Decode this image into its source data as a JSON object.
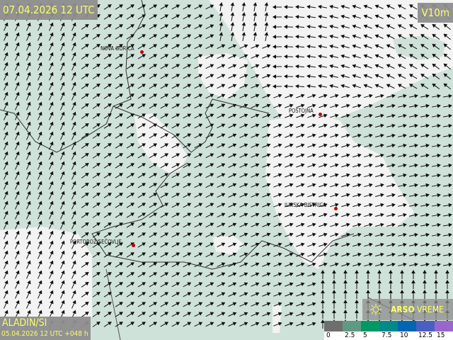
{
  "header": {
    "valid_time": "07.04.2026 12 UTC",
    "variable": "V10m"
  },
  "model": {
    "name": "ALADIN/SI",
    "run": "05.04.2026 12 UTC +048 h"
  },
  "brand": {
    "bold": "ARSO",
    "rest": " VREME",
    "icon": "sun-icon"
  },
  "cities": [
    {
      "name": "NOVA GORICA"
    },
    {
      "name": "POSTOJNA"
    },
    {
      "name": "ILIRSKA BISTRICA"
    },
    {
      "name": "PORTOROŽ/SEČOVLJE"
    }
  ],
  "legend": {
    "ticks": [
      "0",
      "2.5",
      "5",
      "7.5",
      "10",
      "12.5",
      "15"
    ],
    "colors": [
      "#6e6e6e",
      "#5f9a84",
      "#009966",
      "#008a8a",
      "#0066b3",
      "#4a5fc0",
      "#9966cc"
    ]
  },
  "colors": {
    "sea_low_wind": "#cfe2da",
    "land_calm": "#f2f2f2",
    "label_text": "#ffff66",
    "city_dot": "#c00000"
  }
}
